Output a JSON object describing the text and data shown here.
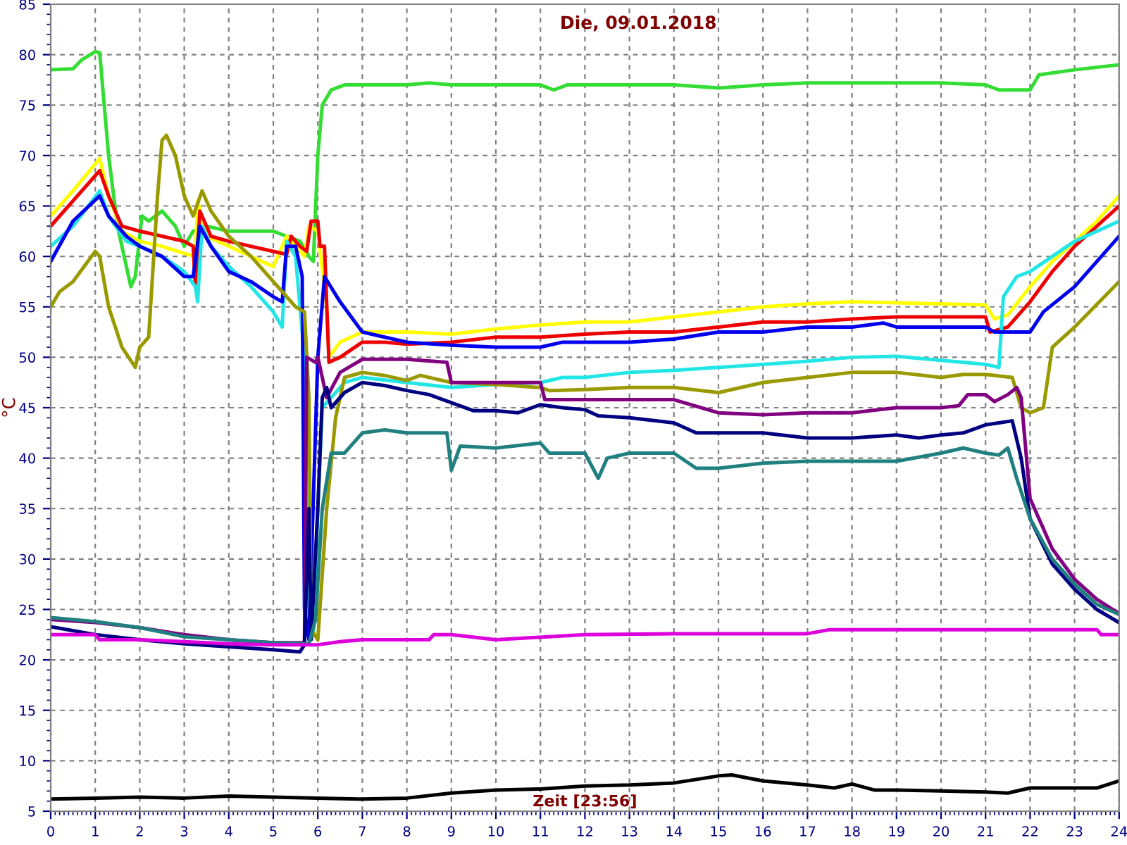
{
  "chart_data": {
    "type": "line",
    "title": "Die, 09.01.2018",
    "ylabel": "°C",
    "annotations": [
      "Zeit [23:56]"
    ],
    "xlim": [
      0,
      24
    ],
    "xticks": [
      0,
      1,
      2,
      3,
      4,
      5,
      6,
      7,
      8,
      9,
      10,
      11,
      12,
      13,
      14,
      15,
      16,
      17,
      18,
      19,
      20,
      21,
      22,
      23,
      24
    ],
    "ylim": [
      5,
      85
    ],
    "yticks": [
      5,
      10,
      15,
      20,
      25,
      30,
      35,
      40,
      45,
      50,
      55,
      60,
      65,
      70,
      75,
      80,
      85
    ],
    "grid": true,
    "legend": false,
    "marker": "none",
    "line_style": "solid",
    "series": [
      {
        "color": "#33dd33",
        "x": [
          0,
          0.5,
          0.7,
          1.0,
          1.1,
          1.3,
          1.5,
          1.8,
          1.9,
          2.05,
          2.2,
          2.5,
          2.8,
          3.0,
          3.2,
          3.5,
          4.0,
          4.5,
          5.0,
          5.3,
          5.6,
          5.8,
          5.9,
          6.0,
          6.1,
          6.3,
          6.6,
          7.5,
          8,
          8.5,
          9,
          11,
          11.3,
          11.6,
          14,
          15,
          16,
          17,
          20,
          21,
          21.3,
          22,
          22.2,
          23,
          24
        ],
        "values": [
          78.5,
          78.6,
          79.5,
          80.3,
          80.2,
          70,
          63,
          57,
          58,
          64,
          63.5,
          64.5,
          63,
          61,
          62.5,
          63,
          62.5,
          62.5,
          62.5,
          62,
          61.5,
          60,
          59.5,
          70,
          75,
          76.5,
          77,
          77,
          77,
          77.2,
          77,
          77,
          76.5,
          77,
          77,
          76.7,
          77,
          77.2,
          77.2,
          77,
          76.5,
          76.5,
          78,
          78.5,
          79
        ]
      },
      {
        "color": "#ffff00",
        "x": [
          0,
          0.5,
          1.1,
          1.3,
          1.6,
          2,
          2.5,
          3.0,
          3.25,
          3.3,
          3.5,
          4,
          4.5,
          5,
          5.3,
          5.5,
          5.7,
          5.8,
          6.0,
          6.2,
          6.25,
          6.5,
          7,
          8,
          9,
          10,
          11,
          12,
          13,
          14,
          15,
          16,
          17,
          18,
          20,
          21,
          21.2,
          21.5,
          22,
          22.5,
          23,
          23.5,
          24
        ],
        "values": [
          64,
          66.5,
          69.7,
          66,
          62.5,
          61.5,
          61,
          60.3,
          60,
          65.5,
          62,
          61,
          60,
          59,
          62,
          61,
          60,
          63,
          62.5,
          55,
          50,
          51.5,
          52.5,
          52.5,
          52.3,
          52.8,
          53.2,
          53.5,
          53.5,
          54,
          54.5,
          55,
          55.3,
          55.5,
          55.3,
          55.2,
          53.8,
          54.2,
          57,
          59.5,
          61.5,
          63.5,
          66
        ]
      },
      {
        "color": "#ee0000",
        "x": [
          0,
          1.1,
          1.3,
          1.6,
          2,
          3,
          3.2,
          3.25,
          3.35,
          3.6,
          4,
          5,
          5.3,
          5.4,
          5.6,
          5.75,
          5.85,
          6.0,
          6.05,
          6.15,
          6.25,
          6.5,
          7,
          7.5,
          8,
          9,
          10,
          11,
          12,
          13,
          14,
          15,
          16,
          17,
          18,
          19,
          20,
          21,
          21.1,
          21.5,
          22,
          22.5,
          23,
          24
        ],
        "values": [
          63,
          68.5,
          66,
          63,
          62.5,
          61.5,
          61,
          57,
          64.5,
          62,
          61.5,
          60.5,
          60.2,
          62,
          61,
          60.5,
          63.5,
          63.5,
          61,
          61,
          49.5,
          50,
          51.5,
          51.5,
          51.3,
          51.5,
          52,
          52,
          52.3,
          52.5,
          52.5,
          53,
          53.5,
          53.5,
          53.8,
          54,
          54,
          54,
          52.5,
          53,
          55.5,
          58.5,
          61,
          65
        ]
      },
      {
        "color": "#22e6e6",
        "x": [
          0,
          0.5,
          1.1,
          1.3,
          1.7,
          2,
          2.5,
          3,
          3.25,
          3.3,
          3.4,
          3.6,
          4,
          4.5,
          5,
          5.2,
          5.3,
          5.5,
          5.7,
          5.8,
          5.9,
          6.0,
          6.1,
          6.3,
          6.6,
          7,
          8,
          9,
          10,
          11,
          11.5,
          12,
          13,
          14,
          15,
          16,
          17,
          18,
          19,
          20,
          20.5,
          21,
          21.3,
          21.4,
          21.7,
          22,
          22.5,
          23,
          24
        ],
        "values": [
          61,
          63,
          66.5,
          64,
          61.5,
          61,
          60,
          58.5,
          57,
          55.5,
          63,
          61,
          59,
          57,
          54.5,
          53,
          61.5,
          60,
          50,
          22,
          22.5,
          35,
          45,
          46,
          47.5,
          48,
          47.5,
          47,
          47.3,
          47.5,
          48,
          48,
          48.5,
          48.7,
          49,
          49.3,
          49.6,
          50,
          50.1,
          49.7,
          49.5,
          49.3,
          49,
          56,
          58,
          58.5,
          60,
          61.5,
          63.5
        ]
      },
      {
        "color": "#0000ee",
        "x": [
          0,
          0.5,
          1.1,
          1.3,
          1.7,
          2,
          2.5,
          3,
          3.2,
          3.35,
          3.6,
          4,
          4.5,
          5,
          5.2,
          5.3,
          5.5,
          5.65,
          5.7,
          5.8,
          6.0,
          6.15,
          6.5,
          7,
          7.5,
          8,
          9,
          10,
          11,
          11.5,
          12,
          13,
          14,
          15,
          16,
          17,
          18,
          18.7,
          19,
          20,
          21,
          21.2,
          22,
          22.3,
          23,
          24
        ],
        "values": [
          59.5,
          63.5,
          66,
          64,
          62,
          61,
          60,
          58,
          58,
          63,
          61,
          58.5,
          57.5,
          56,
          55.5,
          61,
          61,
          58,
          25,
          22,
          50,
          58,
          55.5,
          52.5,
          52,
          51.5,
          51.2,
          51,
          51,
          51.5,
          51.5,
          51.5,
          51.8,
          52.5,
          52.5,
          53,
          53,
          53.4,
          53,
          53,
          53,
          52.5,
          52.5,
          54.5,
          57,
          62
        ]
      },
      {
        "color": "#999900",
        "x": [
          0,
          0.2,
          0.5,
          1.0,
          1.1,
          1.3,
          1.6,
          1.9,
          2.0,
          2.2,
          2.4,
          2.5,
          2.6,
          2.8,
          3.0,
          3.2,
          3.4,
          3.6,
          4,
          4.5,
          5,
          5.5,
          5.7,
          5.8,
          5.85,
          6.0,
          6.2,
          6.4,
          6.6,
          7,
          7.5,
          8,
          8.3,
          9,
          10,
          11,
          11.2,
          12,
          13,
          14,
          15,
          16,
          17,
          18,
          19,
          20,
          20.5,
          21,
          21.6,
          21.8,
          22,
          22.3,
          22.5,
          23,
          24
        ],
        "values": [
          55,
          56.5,
          57.5,
          60.5,
          60,
          55,
          51,
          49,
          51,
          52,
          66,
          71.5,
          72,
          70,
          66,
          64,
          66.5,
          64.5,
          62,
          60,
          57.5,
          55,
          54.5,
          46,
          23,
          22,
          35,
          44,
          48,
          48.5,
          48.2,
          47.7,
          48.2,
          47.5,
          47.3,
          47,
          46.7,
          46.8,
          47,
          47,
          46.5,
          47.5,
          48,
          48.5,
          48.5,
          48,
          48.3,
          48.3,
          48,
          45,
          44.5,
          45,
          51,
          53,
          57.5
        ]
      },
      {
        "color": "#800080",
        "x": [
          0,
          1,
          2,
          3,
          4,
          5,
          5.7,
          5.75,
          5.95,
          6.0,
          6.2,
          6.5,
          7,
          8,
          8.9,
          9.0,
          11,
          11.1,
          13,
          14,
          15,
          16,
          17,
          18,
          19,
          20,
          20.4,
          20.6,
          21,
          21.2,
          21.5,
          21.7,
          21.8,
          22,
          22.5,
          23,
          23.5,
          24
        ],
        "values": [
          24,
          23.7,
          23.2,
          22.5,
          22,
          21.7,
          21.7,
          50,
          49.5,
          50,
          46,
          48.5,
          49.8,
          49.8,
          49.5,
          47.5,
          47.5,
          45.8,
          45.8,
          45.8,
          44.5,
          44.3,
          44.5,
          44.5,
          45,
          45,
          45.2,
          46.3,
          46.3,
          45.6,
          46.3,
          47,
          46,
          36,
          31,
          28,
          26,
          24.6
        ]
      },
      {
        "color": "#000080",
        "x": [
          0,
          1,
          2,
          3,
          4,
          5,
          5.6,
          5.7,
          5.8,
          5.85,
          6.0,
          6.1,
          6.2,
          6.3,
          6.6,
          7,
          7.5,
          8,
          8.5,
          9,
          9.5,
          10,
          10.5,
          11,
          11.5,
          12,
          12.3,
          13,
          14,
          14.5,
          15,
          16,
          17,
          18,
          19,
          19.5,
          20,
          20.5,
          21,
          21.3,
          21.6,
          21.8,
          22,
          22.5,
          23,
          23.5,
          24
        ],
        "values": [
          23.3,
          22.5,
          22,
          21.6,
          21.3,
          21,
          20.8,
          21.5,
          35,
          22,
          35,
          46,
          47,
          45,
          46.5,
          47.5,
          47.2,
          46.7,
          46.3,
          45.5,
          44.7,
          44.7,
          44.5,
          45.3,
          45,
          44.8,
          44.2,
          44,
          43.5,
          42.5,
          42.5,
          42.5,
          42,
          42,
          42.3,
          42,
          42.3,
          42.5,
          43.3,
          43.5,
          43.7,
          40,
          34,
          29.5,
          27,
          25,
          23.7
        ]
      },
      {
        "color": "#208080",
        "x": [
          0,
          1,
          2,
          3,
          4,
          5,
          5.8,
          5.95,
          6.1,
          6.3,
          6.6,
          7,
          7.5,
          8,
          8.9,
          9.0,
          9.2,
          10,
          11,
          11.2,
          12,
          12.3,
          12.5,
          13,
          14,
          14.5,
          15,
          16,
          17,
          18,
          19,
          20,
          20.5,
          21,
          21.3,
          21.5,
          21.7,
          22,
          22.5,
          23,
          23.5,
          24
        ],
        "values": [
          24.2,
          23.8,
          23.2,
          22.3,
          22,
          21.7,
          21.6,
          24,
          35,
          40.5,
          40.5,
          42.5,
          42.8,
          42.5,
          42.5,
          38.8,
          41.2,
          41,
          41.5,
          40.5,
          40.5,
          38,
          40,
          40.5,
          40.5,
          39,
          39,
          39.5,
          39.7,
          39.7,
          39.7,
          40.5,
          41,
          40.5,
          40.3,
          41,
          38,
          34,
          30,
          27.5,
          25.5,
          24.5
        ]
      },
      {
        "color": "#dd00dd",
        "x": [
          0,
          1,
          1.1,
          2,
          3,
          4,
          5,
          6,
          6.5,
          7,
          8.5,
          8.6,
          9,
          10,
          12,
          14,
          16,
          17,
          17.5,
          19,
          20,
          22,
          23.5,
          23.6,
          24
        ],
        "values": [
          22.5,
          22.5,
          22,
          22,
          21.8,
          21.6,
          21.5,
          21.5,
          21.8,
          22,
          22,
          22.5,
          22.5,
          22,
          22.5,
          22.6,
          22.6,
          22.6,
          23,
          23,
          23,
          23,
          23,
          22.5,
          22.5
        ]
      },
      {
        "color": "#000000",
        "x": [
          0,
          1,
          2,
          3,
          4,
          5,
          6,
          7,
          8,
          9,
          10,
          11,
          12,
          13,
          14,
          15,
          15.3,
          16,
          17,
          17.6,
          18,
          18.5,
          19,
          20,
          21,
          21.5,
          22,
          23,
          23.5,
          24
        ],
        "values": [
          6.2,
          6.3,
          6.4,
          6.3,
          6.5,
          6.4,
          6.3,
          6.2,
          6.3,
          6.8,
          7.1,
          7.2,
          7.5,
          7.6,
          7.8,
          8.5,
          8.6,
          8.0,
          7.6,
          7.3,
          7.7,
          7.1,
          7.1,
          7.0,
          6.9,
          6.8,
          7.3,
          7.3,
          7.3,
          8.0
        ]
      }
    ]
  }
}
